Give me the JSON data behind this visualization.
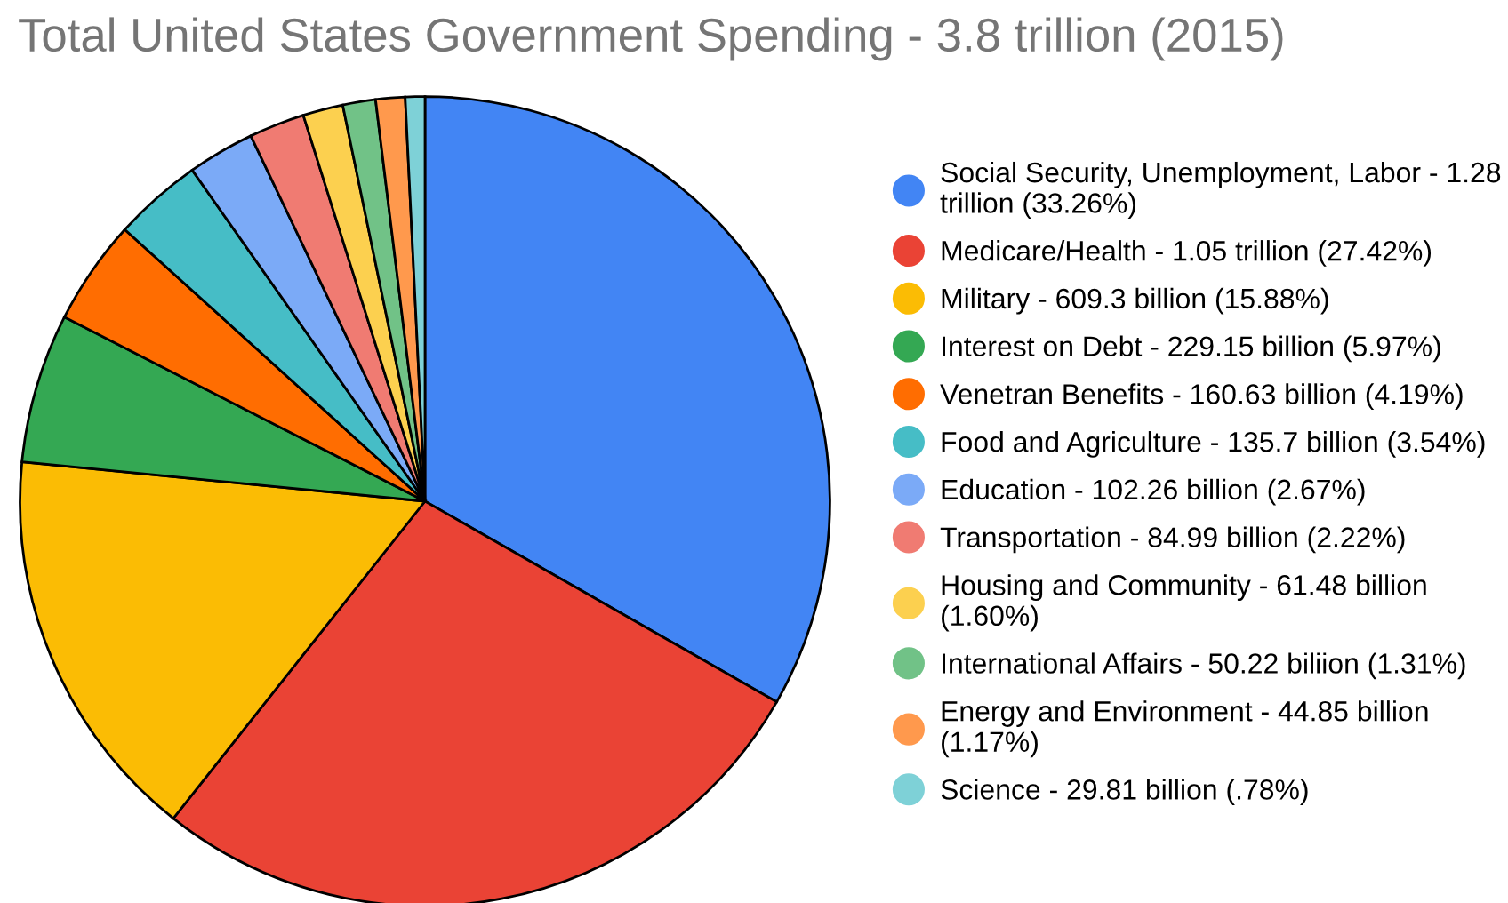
{
  "chart_data": {
    "type": "pie",
    "title": "Total United States Government Spending - 3.8 trillion (2015)",
    "categories": [
      "Social Security, Unemployment, Labor - 1.28 trillion (33.26%)",
      "Medicare/Health - 1.05 trillion (27.42%)",
      "Military - 609.3 billion (15.88%)",
      "Interest on Debt - 229.15 billion (5.97%)",
      "Venetran Benefits - 160.63 billion (4.19%)",
      "Food and Agriculture - 135.7 billion (3.54%)",
      "Education - 102.26 billion (2.67%)",
      "Transportation - 84.99 billion (2.22%)",
      "Housing and Community - 61.48 billion (1.60%)",
      "International Affairs - 50.22 biliion (1.31%)",
      "Energy and Environment - 44.85 billion (1.17%)",
      "Science - 29.81 billion (.78%)"
    ],
    "values": [
      33.26,
      27.42,
      15.88,
      5.97,
      4.19,
      3.54,
      2.67,
      2.22,
      1.6,
      1.31,
      1.17,
      0.78
    ],
    "colors": [
      "#4285f4",
      "#ea4335",
      "#fbbc04",
      "#34a853",
      "#ff6d01",
      "#46bdc6",
      "#7baaf7",
      "#f07b72",
      "#fcd04f",
      "#71c287",
      "#ff994d",
      "#7ed1d7"
    ],
    "legend": "right"
  }
}
